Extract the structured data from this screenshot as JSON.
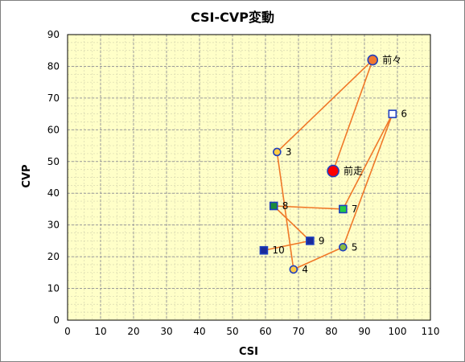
{
  "chart_data": {
    "type": "scatter",
    "title": "CSI-CVP変動",
    "xlabel": "CSI",
    "ylabel": "CVP",
    "xlim": [
      0,
      110
    ],
    "ylim": [
      0,
      90
    ],
    "x_ticks": [
      0,
      10,
      20,
      30,
      40,
      50,
      60,
      70,
      80,
      90,
      100,
      110
    ],
    "y_ticks": [
      0,
      10,
      20,
      30,
      40,
      50,
      60,
      70,
      80,
      90
    ],
    "x_minor_step": 2.5,
    "y_minor_step": 2.5,
    "grid": true,
    "plot_background": "#ffffc8",
    "line_color": "#f07828",
    "path_order": [
      "前々",
      "3",
      "4",
      "5",
      "6",
      "7",
      "8",
      "9",
      "10"
    ],
    "points": [
      {
        "label": "前走",
        "x": 80.5,
        "y": 47,
        "marker": "circle",
        "size": "large",
        "fill": "#ff0000",
        "stroke": "#1f3fbf"
      },
      {
        "label": "前々",
        "x": 92.5,
        "y": 82,
        "marker": "circle",
        "size": "medium",
        "fill": "#f07830",
        "stroke": "#1f3fbf"
      },
      {
        "label": "3",
        "x": 63.5,
        "y": 53,
        "marker": "circle",
        "size": "small",
        "fill": "#ffcc44",
        "stroke": "#1f3fbf"
      },
      {
        "label": "4",
        "x": 68.5,
        "y": 16,
        "marker": "circle",
        "size": "small",
        "fill": "#ffcc44",
        "stroke": "#1f3fbf"
      },
      {
        "label": "5",
        "x": 83.5,
        "y": 23,
        "marker": "circle",
        "size": "small",
        "fill": "#88bb44",
        "stroke": "#1f3fbf"
      },
      {
        "label": "6",
        "x": 98.5,
        "y": 65,
        "marker": "square",
        "size": "small",
        "fill": "#ffffff",
        "stroke": "#1f3fbf"
      },
      {
        "label": "7",
        "x": 83.5,
        "y": 35,
        "marker": "square",
        "size": "small",
        "fill": "#22cc44",
        "stroke": "#1f3fbf"
      },
      {
        "label": "8",
        "x": 62.5,
        "y": 36,
        "marker": "square",
        "size": "small",
        "fill": "#1a8a3a",
        "stroke": "#1f3fbf"
      },
      {
        "label": "9",
        "x": 73.5,
        "y": 25,
        "marker": "square",
        "size": "small",
        "fill": "#1a2a9a",
        "stroke": "#1f3fbf"
      },
      {
        "label": "10",
        "x": 59.5,
        "y": 22,
        "marker": "square",
        "size": "small",
        "fill": "#1a2a9a",
        "stroke": "#1f3fbf"
      }
    ]
  }
}
